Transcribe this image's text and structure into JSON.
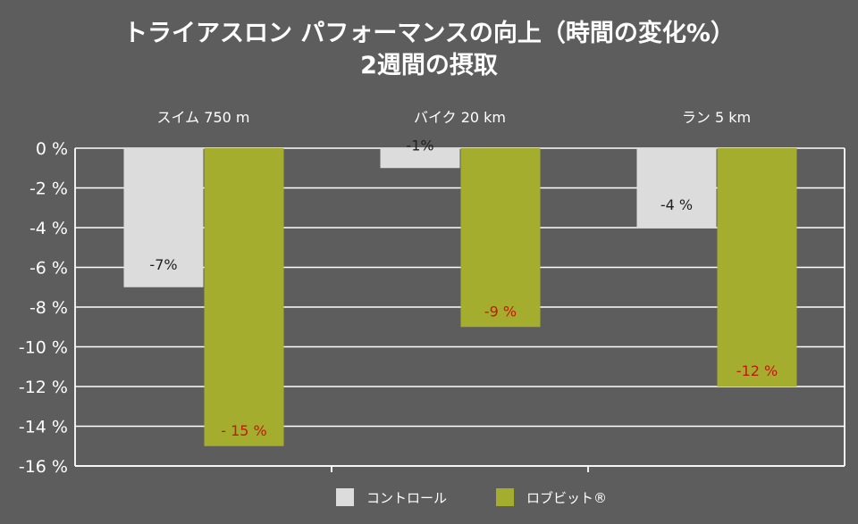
{
  "chart_data": {
    "type": "bar",
    "title": "トライアスロン パフォーマンスの向上（時間の変化%）",
    "subtitle": "2週間の摂取",
    "categories": [
      "スイム  750 m",
      "バイク  20 km",
      "ラン  5 km"
    ],
    "series": [
      {
        "name": "コントロール",
        "color": "#dcdcdc",
        "label_color": "#1f1f1f",
        "values": [
          -7,
          -1,
          -4
        ],
        "labels": [
          "-7%",
          "-1%",
          "-4 %"
        ]
      },
      {
        "name": "ロブビット®",
        "color": "#a5ad2e",
        "label_color": "#c21807",
        "values": [
          -15,
          -9,
          -12
        ],
        "labels": [
          "- 15 %",
          "-9 %",
          "-12 %"
        ]
      }
    ],
    "ylim": [
      -16,
      0
    ],
    "yticks": [
      0,
      -2,
      -4,
      -6,
      -8,
      -10,
      -12,
      -14,
      -16
    ],
    "ytick_labels": [
      "0 %",
      "-2 %",
      "-4 %",
      "-6 %",
      "-8 %",
      "-10 %",
      "-12 %",
      "-14 %",
      "-16 %"
    ],
    "grid": true,
    "xlabel": "",
    "ylabel": "",
    "legend_position": "bottom-center"
  }
}
